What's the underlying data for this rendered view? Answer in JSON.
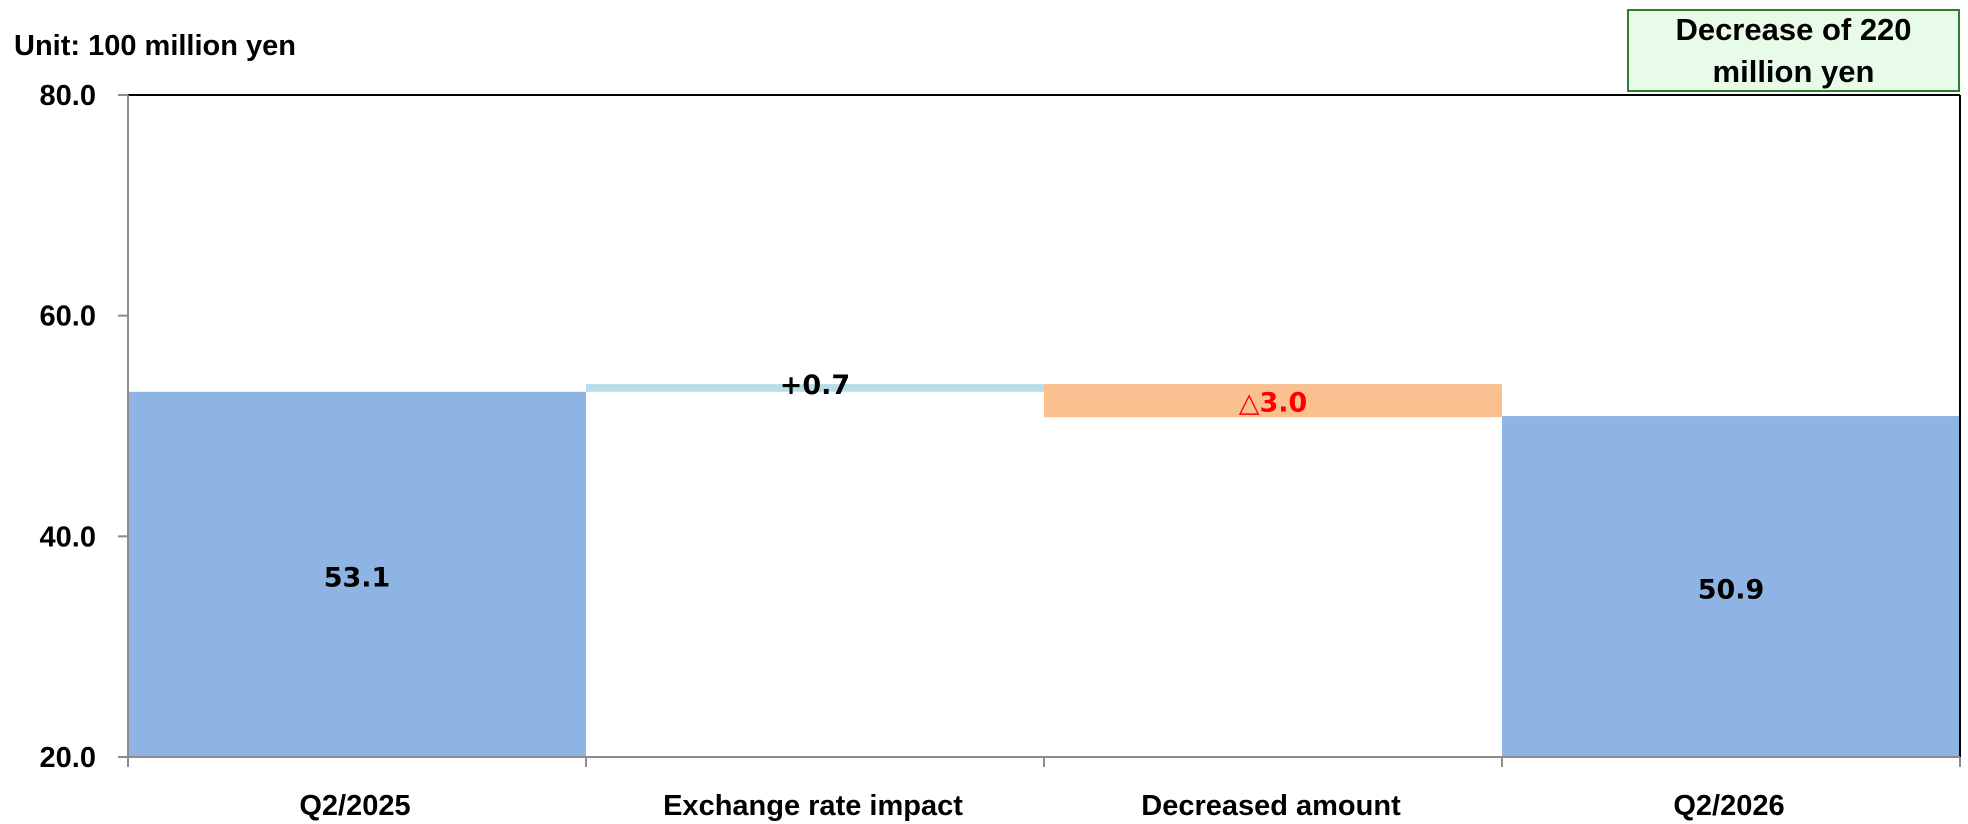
{
  "unit_label": "Unit: 100 million yen",
  "callout": "Decrease of 220 million yen",
  "colors": {
    "total": "#8EB4E3",
    "increase": "#B7DEE8",
    "decrease": "#FAC090",
    "decrease_label": "#FF0000",
    "callout_fill": "#E8FBE8",
    "callout_border": "#2F7D32"
  },
  "chart_data": {
    "type": "bar",
    "subtype": "waterfall",
    "categories": [
      "Q2/2025",
      "Exchange rate impact",
      "Decreased amount",
      "Q2/2026"
    ],
    "values": [
      53.1,
      0.7,
      -3.0,
      50.9
    ],
    "bar_kinds": [
      "total",
      "increase",
      "decrease",
      "total"
    ],
    "data_labels": [
      "53.1",
      "+0.7",
      "△3.0",
      "50.9"
    ],
    "ylim": [
      20.0,
      80.0
    ],
    "yticks": [
      "20.0",
      "40.0",
      "60.0",
      "80.0"
    ],
    "grid": false,
    "legend": "none"
  }
}
